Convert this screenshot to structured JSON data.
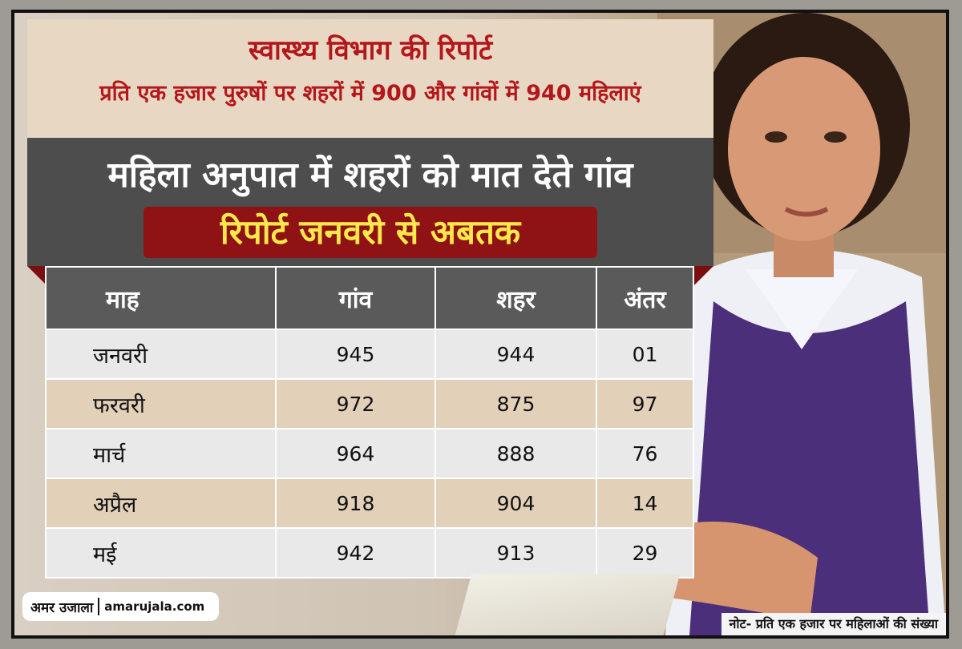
{
  "header": {
    "subtitle": "स्वास्थ्य विभाग की रिपोर्ट",
    "subline": "प्रति एक हजार पुरुषों पर शहरों में 900 और गांवों में 940 महिलाएं",
    "title": "महिला अनुपात में शहरों को मात देते गांव",
    "badge": "रिपोर्ट जनवरी से अबतक"
  },
  "table": {
    "headers": [
      "माह",
      "गांव",
      "शहर",
      "अंतर"
    ],
    "rows": [
      [
        "जनवरी",
        "945",
        "944",
        "01"
      ],
      [
        "फरवरी",
        "972",
        "875",
        "97"
      ],
      [
        "मार्च",
        "964",
        "888",
        "76"
      ],
      [
        "अप्रैल",
        "918",
        "904",
        "14"
      ],
      [
        "मई",
        "942",
        "913",
        "29"
      ]
    ]
  },
  "logo": {
    "hindi": "अमर उजाला",
    "url": "amarujala.com"
  },
  "note": "नोट- प्रति एक हजार पर महिलाओं की संख्या",
  "colors": {
    "title_red": "#b3161b",
    "badge_bg": "#8f1214",
    "badge_text": "#ffe94a",
    "band_gray": "#4d4d4d"
  }
}
